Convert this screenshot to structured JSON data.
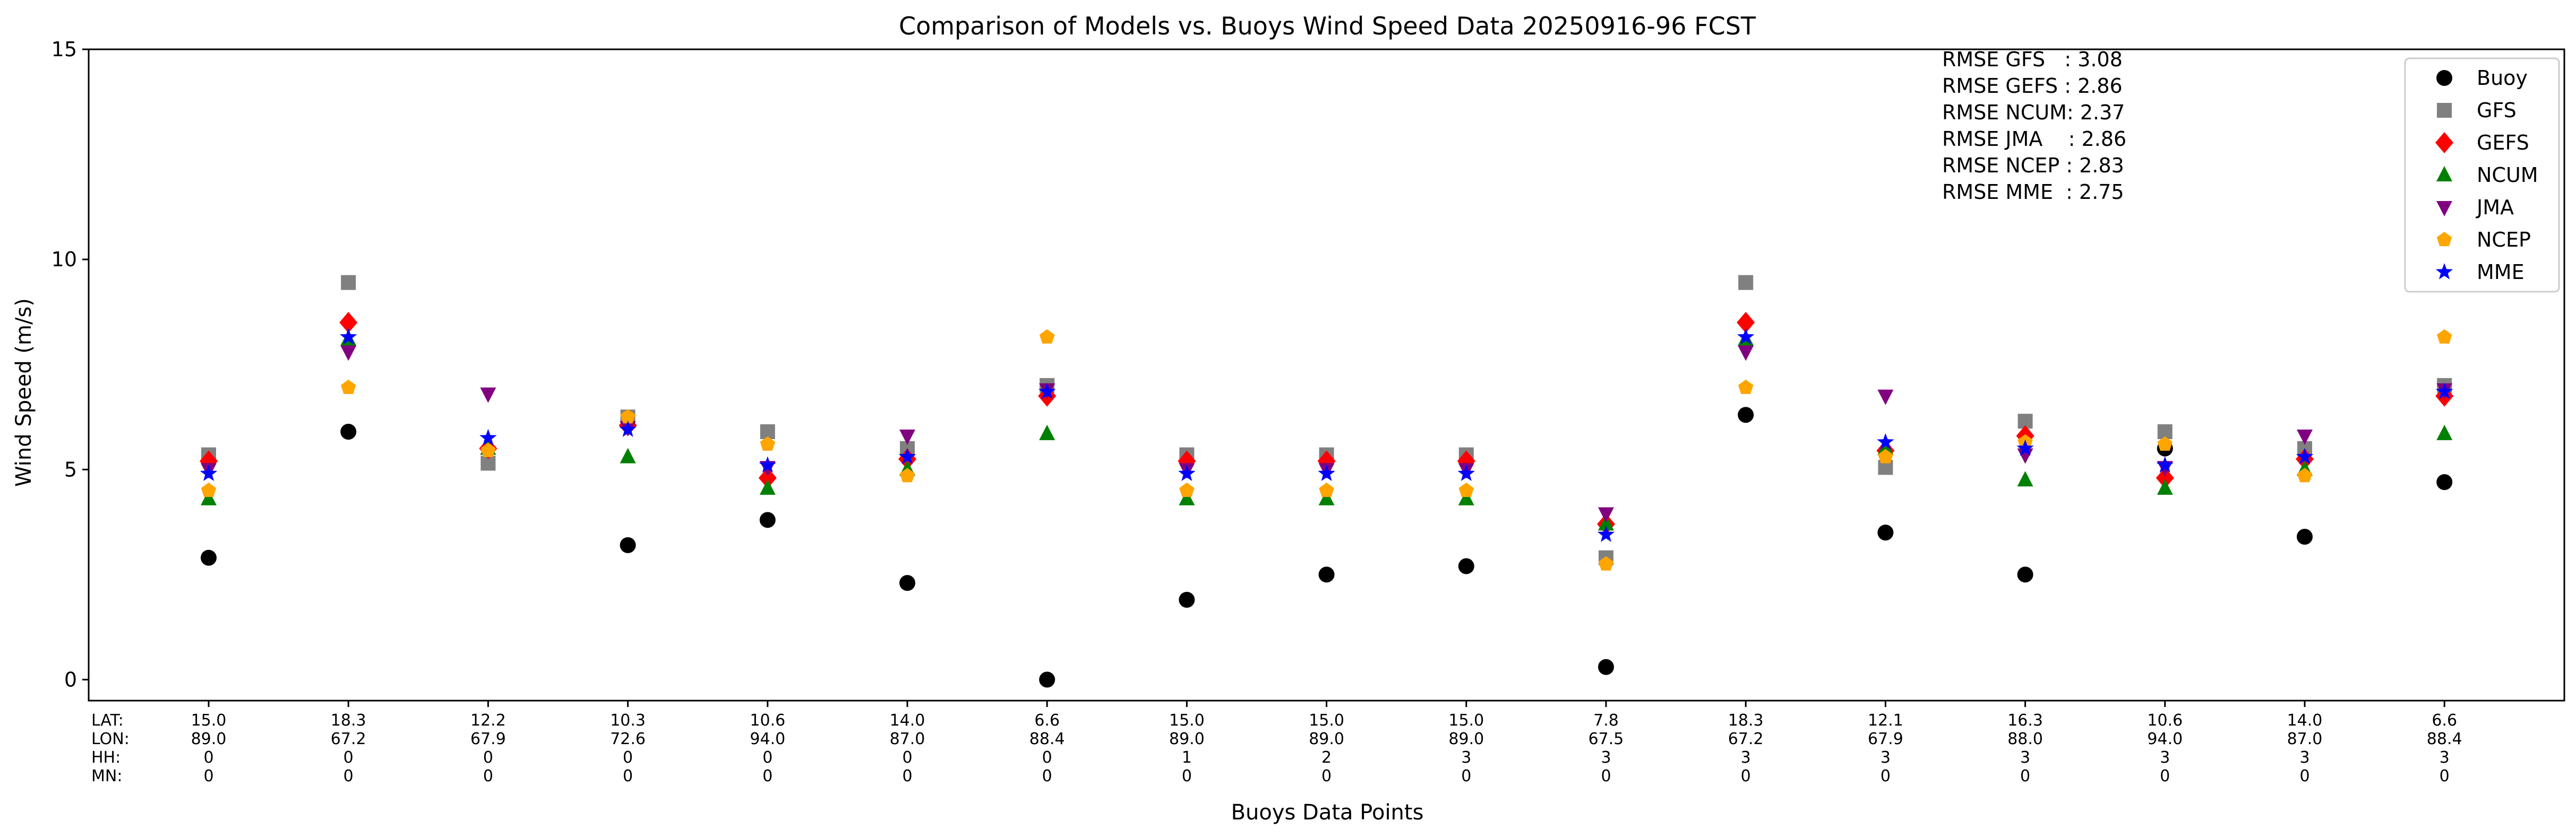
{
  "chart_data": {
    "type": "scatter",
    "title": "Comparison of Models vs. Buoys Wind Speed Data 20250916-96 FCST",
    "xlabel": "Buoys Data Points",
    "ylabel": "Wind Speed (m/s)",
    "ylim": [
      -0.5,
      15
    ],
    "yticks": [
      0,
      5,
      10,
      15
    ],
    "grid": false,
    "legend_position": "top-right",
    "info_row_labels": [
      "LAT:",
      "LON:",
      "HH:",
      "MN:"
    ],
    "points": [
      {
        "lat": "15.0",
        "lon": "89.0",
        "hh": "0",
        "mn": "0"
      },
      {
        "lat": "18.3",
        "lon": "67.2",
        "hh": "0",
        "mn": "0"
      },
      {
        "lat": "12.2",
        "lon": "67.9",
        "hh": "0",
        "mn": "0"
      },
      {
        "lat": "10.3",
        "lon": "72.6",
        "hh": "0",
        "mn": "0"
      },
      {
        "lat": "10.6",
        "lon": "94.0",
        "hh": "0",
        "mn": "0"
      },
      {
        "lat": "14.0",
        "lon": "87.0",
        "hh": "0",
        "mn": "0"
      },
      {
        "lat": "6.6",
        "lon": "88.4",
        "hh": "0",
        "mn": "0"
      },
      {
        "lat": "15.0",
        "lon": "89.0",
        "hh": "1",
        "mn": "0"
      },
      {
        "lat": "15.0",
        "lon": "89.0",
        "hh": "2",
        "mn": "0"
      },
      {
        "lat": "15.0",
        "lon": "89.0",
        "hh": "3",
        "mn": "0"
      },
      {
        "lat": "7.8",
        "lon": "67.5",
        "hh": "3",
        "mn": "0"
      },
      {
        "lat": "18.3",
        "lon": "67.2",
        "hh": "3",
        "mn": "0"
      },
      {
        "lat": "12.1",
        "lon": "67.9",
        "hh": "3",
        "mn": "0"
      },
      {
        "lat": "16.3",
        "lon": "88.0",
        "hh": "3",
        "mn": "0"
      },
      {
        "lat": "10.6",
        "lon": "94.0",
        "hh": "3",
        "mn": "0"
      },
      {
        "lat": "14.0",
        "lon": "87.0",
        "hh": "3",
        "mn": "0"
      },
      {
        "lat": "6.6",
        "lon": "88.4",
        "hh": "3",
        "mn": "0"
      }
    ],
    "series": [
      {
        "name": "Buoy",
        "marker": "circle",
        "color": "#000000",
        "values": [
          2.9,
          5.9,
          null,
          3.2,
          3.8,
          2.3,
          0.0,
          1.9,
          2.5,
          2.7,
          0.3,
          6.3,
          3.5,
          2.5,
          5.5,
          3.4,
          4.7
        ]
      },
      {
        "name": "GFS",
        "marker": "square",
        "color": "#808080",
        "values": [
          5.35,
          9.45,
          5.15,
          6.25,
          5.9,
          5.5,
          7.0,
          5.35,
          5.35,
          5.35,
          2.9,
          9.45,
          5.05,
          6.15,
          5.9,
          5.5,
          7.0
        ]
      },
      {
        "name": "GEFS",
        "marker": "diamond",
        "color": "#ff0000",
        "values": [
          5.2,
          8.5,
          5.5,
          6.05,
          4.8,
          5.25,
          6.75,
          5.2,
          5.2,
          5.2,
          3.7,
          8.5,
          5.45,
          5.8,
          4.8,
          5.25,
          6.75
        ]
      },
      {
        "name": "NCUM",
        "marker": "triangle-up",
        "color": "#008000",
        "values": [
          4.3,
          8.1,
          5.5,
          5.3,
          4.55,
          5.0,
          5.85,
          4.3,
          4.3,
          4.3,
          3.7,
          8.1,
          5.5,
          4.75,
          4.55,
          5.0,
          5.85
        ]
      },
      {
        "name": "JMA",
        "marker": "triangle-down",
        "color": "#800080",
        "values": [
          5.0,
          7.8,
          6.8,
          6.0,
          5.05,
          5.8,
          6.9,
          5.0,
          5.0,
          5.0,
          3.95,
          7.8,
          6.75,
          5.35,
          5.05,
          5.8,
          6.9
        ]
      },
      {
        "name": "NCEP",
        "marker": "pentagon",
        "color": "#ffa500",
        "values": [
          4.5,
          6.95,
          5.45,
          6.25,
          5.6,
          4.85,
          8.15,
          4.5,
          4.5,
          4.5,
          2.75,
          6.95,
          5.3,
          5.65,
          5.6,
          4.85,
          8.15
        ]
      },
      {
        "name": "MME",
        "marker": "star",
        "color": "#0000ff",
        "values": [
          4.9,
          8.15,
          5.75,
          5.95,
          5.1,
          5.3,
          6.85,
          4.9,
          4.9,
          4.9,
          3.45,
          8.15,
          5.65,
          5.5,
          5.1,
          5.3,
          6.85
        ]
      }
    ],
    "rmse_lines": [
      "RMSE GFS   : 3.08",
      "RMSE GEFS : 2.86",
      "RMSE NCUM: 2.37",
      "RMSE JMA    : 2.86",
      "RMSE NCEP : 2.83",
      "RMSE MME  : 2.75"
    ]
  }
}
